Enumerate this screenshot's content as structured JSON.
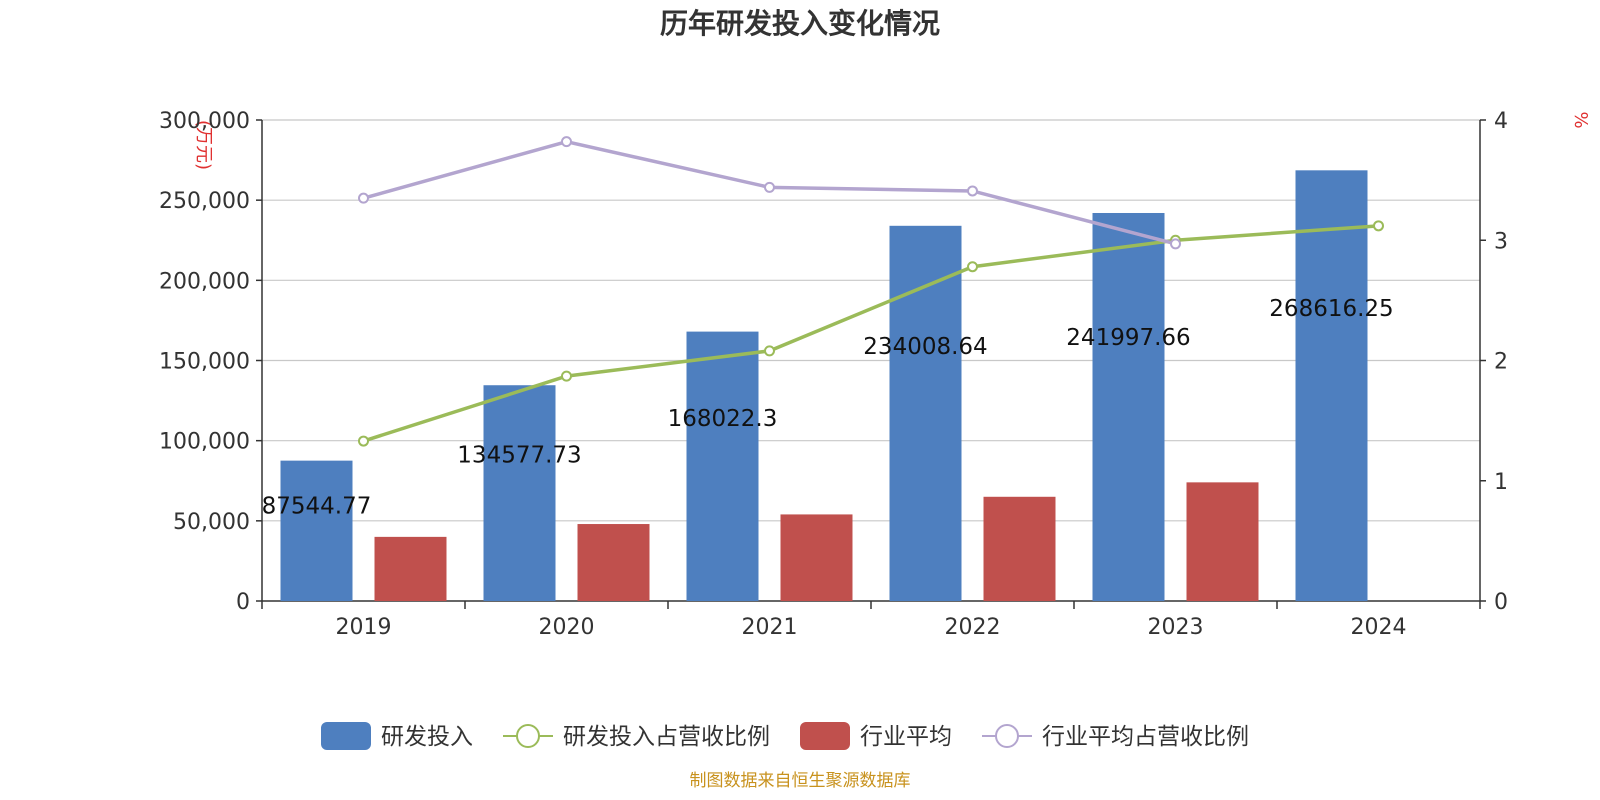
{
  "chart_data": {
    "type": "bar",
    "title": "历年研发投入变化情况",
    "y_left_unit": "(万元)",
    "y_right_unit": "%",
    "categories": [
      "2019",
      "2020",
      "2021",
      "2022",
      "2023",
      "2024"
    ],
    "y_left_ticks": [
      "0",
      "50,000",
      "100,000",
      "150,000",
      "200,000",
      "250,000",
      "300,000"
    ],
    "y_right_ticks": [
      "0",
      "1",
      "2",
      "3",
      "4"
    ],
    "ylim_left": [
      0,
      300000
    ],
    "ylim_right": [
      0,
      4
    ],
    "grid": true,
    "legend_position": "bottom",
    "series": [
      {
        "name": "研发投入",
        "kind": "bar",
        "axis": "left",
        "color": "#4e7fbf",
        "values": [
          87544.77,
          134577.73,
          168022.3,
          234008.64,
          241997.66,
          268616.25
        ],
        "labels": [
          "87544.77",
          "134577.73",
          "168022.3",
          "234008.64",
          "241997.66",
          "268616.25"
        ]
      },
      {
        "name": "研发投入占营收比例",
        "kind": "line",
        "axis": "right",
        "color": "#9bbb59",
        "values": [
          1.33,
          1.87,
          2.08,
          2.78,
          3.0,
          3.12
        ]
      },
      {
        "name": "行业平均",
        "kind": "bar",
        "axis": "left",
        "color": "#c0504d",
        "values": [
          40000,
          48000,
          54000,
          65000,
          74000,
          null
        ]
      },
      {
        "name": "行业平均占营收比例",
        "kind": "line",
        "axis": "right",
        "color": "#b3a5cf",
        "values": [
          3.35,
          3.82,
          3.44,
          3.41,
          2.97,
          null
        ]
      }
    ],
    "source": "制图数据来自恒生聚源数据库"
  }
}
